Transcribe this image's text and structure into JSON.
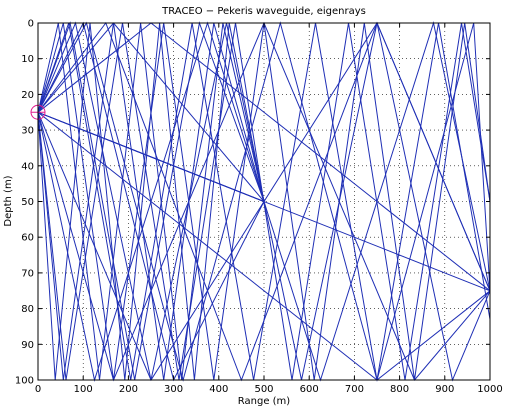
{
  "chart_data": {
    "type": "line",
    "title": "TRACEO − Pekeris waveguide, eigenrays",
    "xlabel": "Range (m)",
    "ylabel": "Depth (m)",
    "xlim": [
      0,
      1000
    ],
    "ylim": [
      0,
      100
    ],
    "y_reversed": true,
    "grid": true,
    "x_ticks": [
      0,
      100,
      200,
      300,
      400,
      500,
      600,
      700,
      800,
      900,
      1000
    ],
    "y_ticks": [
      0,
      10,
      20,
      30,
      40,
      50,
      60,
      70,
      80,
      90,
      100
    ],
    "colors": {
      "rays": "#1f2fb5",
      "source": "#e0198c"
    },
    "source": {
      "range": 0,
      "depth": 25
    },
    "receivers": [
      {
        "range": 500,
        "depth": 50
      },
      {
        "range": 1000,
        "depth": 75
      }
    ],
    "series": [
      {
        "x": [
          0,
          1000
        ],
        "y": [
          25,
          75
        ]
      },
      {
        "x": [
          0,
          500
        ],
        "y": [
          25,
          50
        ]
      },
      {
        "x": [
          0,
          250,
          1000
        ],
        "y": [
          25,
          0,
          75
        ]
      },
      {
        "x": [
          0,
          167,
          500
        ],
        "y": [
          25,
          0,
          50
        ]
      },
      {
        "x": [
          0,
          750,
          1000
        ],
        "y": [
          25,
          100,
          75
        ]
      },
      {
        "x": [
          0,
          500
        ],
        "y": [
          25,
          50
        ]
      },
      {
        "x": [
          0,
          167,
          500,
          833,
          1000
        ],
        "y": [
          25,
          100,
          0,
          100,
          75
        ]
      },
      {
        "x": [
          0,
          100,
          300,
          500
        ],
        "y": [
          25,
          0,
          100,
          50
        ]
      },
      {
        "x": [
          0,
          250,
          750,
          1000
        ],
        "y": [
          25,
          100,
          0,
          75
        ]
      },
      {
        "x": [
          0,
          150,
          450,
          750,
          1000
        ],
        "y": [
          25,
          0,
          100,
          0,
          75
        ]
      },
      {
        "x": [
          0,
          125,
          375,
          625,
          875,
          1000
        ],
        "y": [
          25,
          100,
          0,
          100,
          0,
          75
        ]
      },
      {
        "x": [
          0,
          71,
          214,
          357,
          500
        ],
        "y": [
          25,
          0,
          100,
          0,
          50
        ]
      },
      {
        "x": [
          0,
          56,
          167,
          278,
          389,
          500
        ],
        "y": [
          25,
          100,
          0,
          100,
          0,
          50
        ]
      },
      {
        "x": [
          0,
          107,
          321,
          536,
          750,
          964,
          1000
        ],
        "y": [
          25,
          0,
          100,
          0,
          100,
          0,
          75
        ]
      },
      {
        "x": [
          0,
          83,
          250,
          417,
          583,
          750,
          917,
          1000
        ],
        "y": [
          25,
          0,
          100,
          0,
          100,
          0,
          100,
          75
        ]
      },
      {
        "x": [
          0,
          45,
          136,
          227,
          318,
          409,
          500
        ],
        "y": [
          25,
          0,
          100,
          0,
          100,
          0,
          50
        ]
      },
      {
        "x": [
          0,
          38,
          115,
          192,
          269,
          346,
          423,
          500
        ],
        "y": [
          25,
          100,
          0,
          100,
          0,
          100,
          0,
          50
        ]
      },
      {
        "x": [
          0,
          68,
          205,
          341,
          477,
          614,
          750,
          886,
          1000
        ],
        "y": [
          25,
          0,
          100,
          0,
          100,
          0,
          100,
          0,
          83
        ]
      },
      {
        "x": [
          0,
          62,
          187,
          312,
          437,
          562,
          687,
          812,
          937,
          1000
        ],
        "y": [
          25,
          100,
          0,
          100,
          0,
          100,
          0,
          100,
          0,
          50
        ]
      },
      {
        "x": [
          0,
          56,
          167,
          278,
          389,
          500,
          611,
          722,
          833,
          944,
          1000
        ],
        "y": [
          25,
          0,
          100,
          0,
          100,
          0,
          100,
          0,
          100,
          0,
          50
        ]
      }
    ]
  }
}
